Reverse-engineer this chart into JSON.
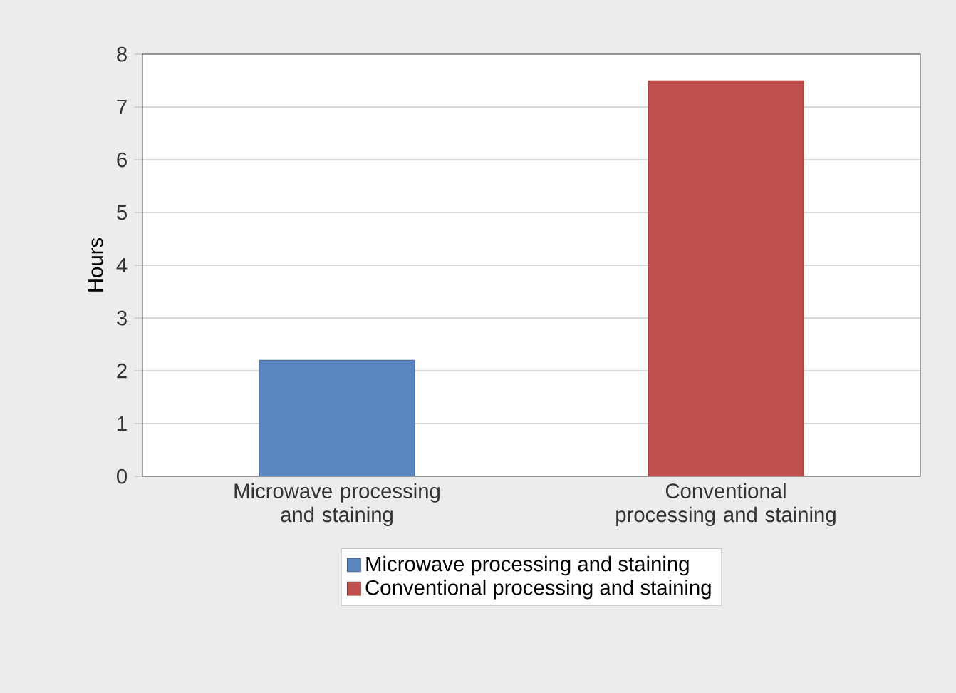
{
  "chart_data": {
    "type": "bar",
    "ylabel": "Hours",
    "categories": [
      "Microwave processing and staining",
      "Conventional processing and staining"
    ],
    "series": [
      {
        "name": "Microwave processing and staining",
        "color": "#5b86c0",
        "values": [
          2.2,
          null
        ]
      },
      {
        "name": "Conventional processing and staining",
        "color": "#c0504d",
        "values": [
          null,
          7.5
        ]
      }
    ],
    "ylim": [
      0,
      8
    ],
    "yticks": [
      0,
      1,
      2,
      3,
      4,
      5,
      6,
      7,
      8
    ],
    "grid": "y",
    "legend": "bottom"
  }
}
